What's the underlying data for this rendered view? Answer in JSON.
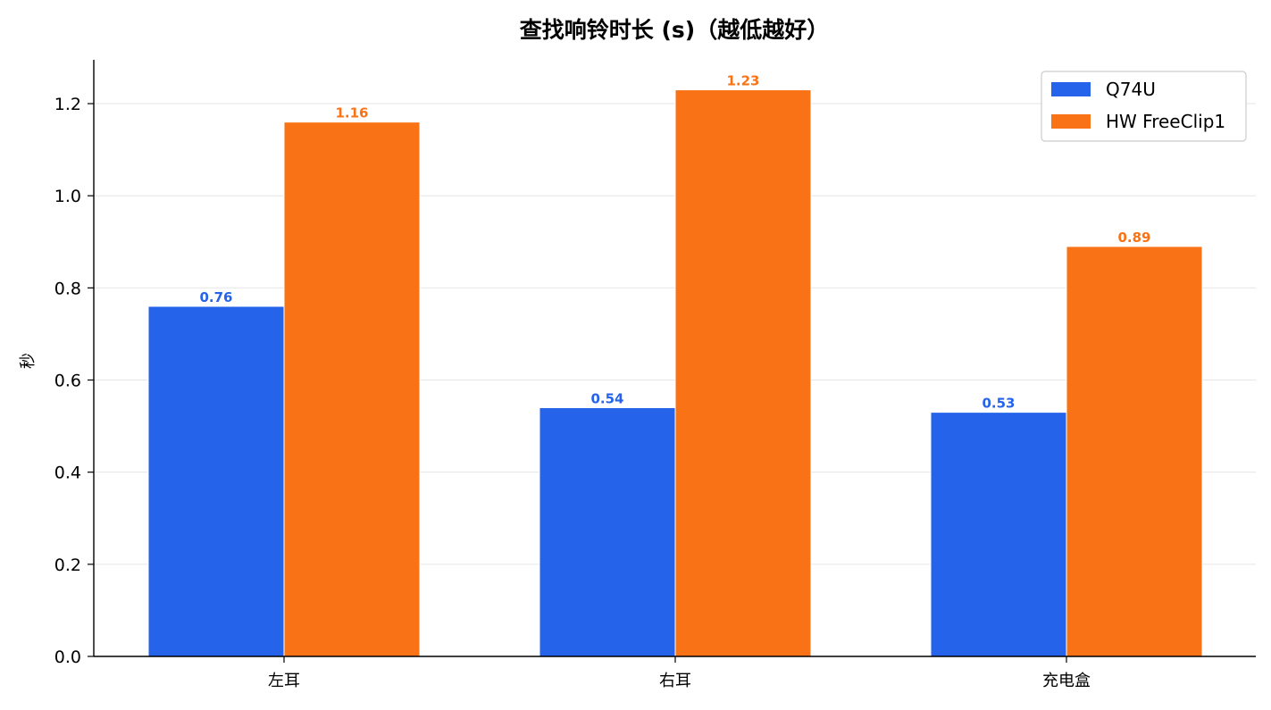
{
  "chart_data": {
    "type": "bar",
    "title": "查找响铃时长 (s)（越低越好）",
    "ylabel": "秒",
    "xlabel": "",
    "categories": [
      "左耳",
      "右耳",
      "充电盒"
    ],
    "series": [
      {
        "name": "Q74U",
        "color": "#2563eb",
        "values": [
          0.76,
          0.54,
          0.53
        ],
        "labels": [
          "0.76",
          "0.54",
          "0.53"
        ]
      },
      {
        "name": "HW FreeClip1",
        "color": "#f97316",
        "values": [
          1.16,
          1.23,
          0.89
        ],
        "labels": [
          "1.16",
          "1.23",
          "0.89"
        ]
      }
    ],
    "ylim": [
      0,
      1.3
    ],
    "yticks": [
      0.0,
      0.2,
      0.4,
      0.6,
      0.8,
      1.0,
      1.2
    ],
    "ytick_labels": [
      "0.0",
      "0.2",
      "0.4",
      "0.6",
      "0.8",
      "1.0",
      "1.2"
    ],
    "grid": "horizontal",
    "legend": "top-right"
  }
}
